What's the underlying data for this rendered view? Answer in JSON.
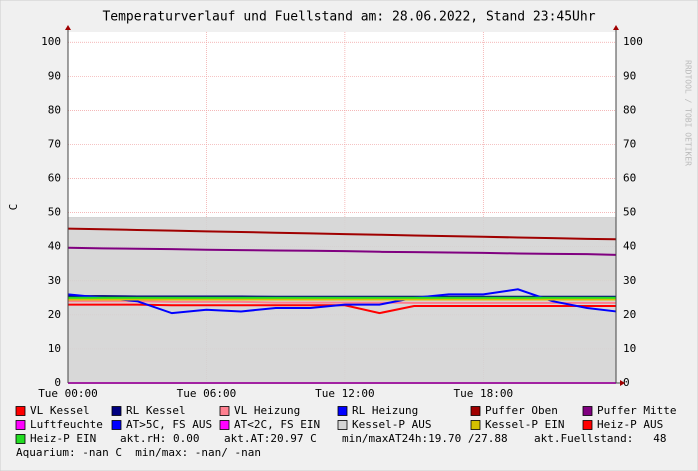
{
  "chart_data": {
    "type": "line",
    "title": "Temperaturverlauf und Fuellstand am: 28.06.2022, Stand 23:45Uhr",
    "y_label": "C",
    "watermark": "RRDTOOL / TOBI OETIKER",
    "x": [
      0,
      1.5,
      3,
      4.5,
      6,
      7.5,
      9,
      10.5,
      12,
      13.5,
      15,
      16.5,
      18,
      19.5,
      21,
      22.5,
      23.75
    ],
    "xlim": [
      0,
      23.75
    ],
    "xticks": [
      {
        "value": 0,
        "label": "Tue 00:00"
      },
      {
        "value": 6,
        "label": "Tue 06:00"
      },
      {
        "value": 12,
        "label": "Tue 12:00"
      },
      {
        "value": 18,
        "label": "Tue 18:00"
      }
    ],
    "ylim": [
      0,
      103
    ],
    "yticks": [
      0,
      10,
      20,
      30,
      40,
      50,
      60,
      70,
      80,
      90,
      100
    ],
    "grid": true,
    "series": [
      {
        "name": "VL Kessel",
        "color": "#ff0000",
        "values": [
          23,
          23,
          23,
          22.8,
          22.8,
          22.8,
          22.8,
          22.8,
          22.8,
          20.5,
          22.6,
          22.6,
          22.6,
          22.6,
          22.6,
          22.6,
          22.6
        ]
      },
      {
        "name": "RL Kessel",
        "color": "#000080",
        "values": [
          25.5,
          25.5,
          25.4,
          25.4,
          25.4,
          25.4,
          25.3,
          25.3,
          25.3,
          25.3,
          25.3,
          25.3,
          25.3,
          25.3,
          25.3,
          25.3,
          25.3
        ]
      },
      {
        "name": "VL Heizung",
        "color": "#ff8090",
        "values": [
          24,
          24,
          24,
          23.8,
          23.8,
          23.8,
          23.6,
          23.6,
          23.6,
          23.6,
          23.5,
          23.5,
          23.5,
          23.5,
          23.5,
          23.5,
          23.5
        ]
      },
      {
        "name": "RL Heizung",
        "color": "#0000ff",
        "values": [
          26,
          25,
          24,
          20.5,
          21.5,
          21,
          22,
          22,
          23,
          23,
          25,
          26,
          26,
          27.5,
          24,
          22,
          21
        ]
      },
      {
        "name": "Puffer Oben",
        "color": "#a00000",
        "values": [
          45.3,
          45.1,
          44.9,
          44.7,
          44.5,
          44.3,
          44.1,
          43.9,
          43.7,
          43.5,
          43.3,
          43.1,
          42.9,
          42.7,
          42.5,
          42.3,
          42.2
        ]
      },
      {
        "name": "Puffer Mitte",
        "color": "#800080",
        "values": [
          39.7,
          39.5,
          39.4,
          39.3,
          39.1,
          39,
          38.9,
          38.8,
          38.7,
          38.5,
          38.4,
          38.3,
          38.2,
          38,
          37.9,
          37.8,
          37.6
        ]
      },
      {
        "name": "Luftfeuchte",
        "color": "#ff00ff",
        "values": [
          0,
          0,
          0,
          0,
          0,
          0,
          0,
          0,
          0,
          0,
          0,
          0,
          0,
          0,
          0,
          0,
          0
        ]
      },
      {
        "name": "AT>5C, FS AUS",
        "color": "#0000ff",
        "values": [
          null,
          null,
          null,
          null,
          null,
          null,
          null,
          null,
          null,
          null,
          null,
          null,
          null,
          null,
          null,
          null,
          null
        ]
      },
      {
        "name": "AT<2C, FS EIN",
        "color": "#ff00ff",
        "values": [
          null,
          null,
          null,
          null,
          null,
          null,
          null,
          null,
          null,
          null,
          null,
          null,
          null,
          null,
          null,
          null,
          null
        ]
      },
      {
        "name": "Kessel-P AUS",
        "color": "#a0a0a0",
        "fill": "#d4d4d4",
        "values": [
          48.5,
          48.5,
          48.5,
          48.5,
          48.5,
          48.5,
          48.5,
          48.5,
          48.5,
          48.5,
          48.5,
          48.5,
          48.5,
          48.5,
          48.5,
          48.5,
          48.5
        ]
      },
      {
        "name": "Kessel-P EIN",
        "color": "#d4c000",
        "values": [
          24.5,
          24.5,
          24.5,
          24.5,
          24.5,
          24.5,
          24.5,
          24.5,
          24.5,
          24.5,
          24.5,
          24.5,
          24.5,
          24.5,
          24.5,
          24.5,
          24.5
        ]
      },
      {
        "name": "Heiz-P AUS",
        "color": "#ff0000",
        "values": [
          null,
          null,
          null,
          null,
          null,
          null,
          null,
          null,
          null,
          null,
          null,
          null,
          null,
          null,
          null,
          null,
          null
        ]
      },
      {
        "name": "Heiz-P EIN",
        "color": "#22dd22",
        "values": [
          25,
          25,
          25,
          25,
          25,
          25,
          25,
          25,
          25,
          25,
          25,
          25,
          25,
          25,
          25,
          25,
          25
        ]
      }
    ],
    "legend_notes": [
      "akt.rH: 0.00",
      "akt.AT:20.97 C",
      "min/maxAT24h:19.70 /27.88",
      "akt.Fuellstand:   48",
      "Aquarium: -nan C  min/max: -nan/ -nan"
    ]
  }
}
